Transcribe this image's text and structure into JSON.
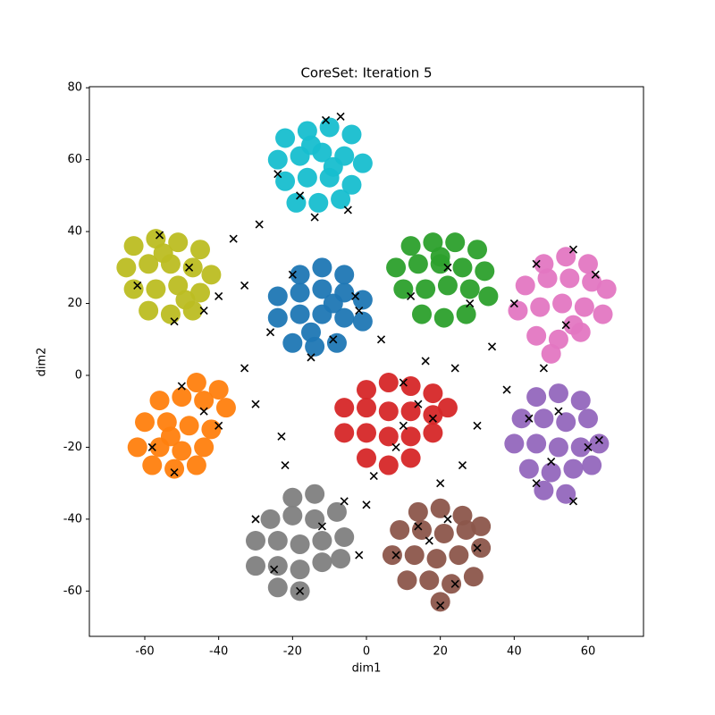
{
  "chart_data": {
    "type": "scatter",
    "title": "CoreSet: Iteration 5",
    "x_label": "dim1",
    "y_label": "dim2",
    "xlim": [
      -75,
      75
    ],
    "ylim": [
      -72.6,
      80.3
    ],
    "xticks": [
      -60,
      -40,
      -20,
      0,
      20,
      40,
      60
    ],
    "yticks": [
      -60,
      -40,
      -20,
      0,
      20,
      40,
      60,
      80
    ],
    "grid": false,
    "series": [
      {
        "color": "#17becf",
        "marker": "o",
        "x": [
          -22,
          -16,
          -10,
          -4,
          -24,
          -18,
          -12,
          -6,
          -1,
          -22,
          -16,
          -10,
          -4,
          -19,
          -13,
          -7,
          -15,
          -9
        ],
        "y": [
          66,
          68,
          69,
          67,
          60,
          61,
          62,
          61,
          59,
          54,
          55,
          55,
          53,
          48,
          48,
          49,
          64,
          58
        ]
      },
      {
        "color": "#bcbd22",
        "marker": "o",
        "x": [
          -63,
          -57,
          -51,
          -45,
          -65,
          -59,
          -53,
          -47,
          -42,
          -63,
          -57,
          -51,
          -45,
          -59,
          -53,
          -47,
          -55,
          -49
        ],
        "y": [
          36,
          38,
          37,
          35,
          30,
          31,
          31,
          30,
          28,
          24,
          24,
          25,
          23,
          18,
          17,
          18,
          34,
          21
        ]
      },
      {
        "color": "#1f77b4",
        "marker": "o",
        "x": [
          -18,
          -12,
          -6,
          -24,
          -18,
          -12,
          -6,
          -1,
          -24,
          -18,
          -12,
          -6,
          -1,
          -20,
          -14,
          -8,
          -15,
          -9
        ],
        "y": [
          28,
          30,
          28,
          22,
          23,
          24,
          23,
          21,
          16,
          17,
          17,
          16,
          15,
          9,
          8,
          9,
          12,
          20
        ]
      },
      {
        "color": "#2ca02c",
        "marker": "o",
        "x": [
          12,
          18,
          24,
          30,
          8,
          14,
          20,
          26,
          32,
          10,
          16,
          22,
          28,
          33,
          15,
          21,
          27,
          20
        ],
        "y": [
          36,
          37,
          37,
          35,
          30,
          31,
          31,
          30,
          29,
          24,
          24,
          25,
          24,
          22,
          17,
          16,
          17,
          33
        ]
      },
      {
        "color": "#e377c2",
        "marker": "o",
        "x": [
          48,
          54,
          60,
          43,
          49,
          55,
          61,
          65,
          41,
          47,
          53,
          59,
          64,
          46,
          52,
          58,
          50,
          56
        ],
        "y": [
          31,
          33,
          31,
          25,
          27,
          27,
          26,
          24,
          18,
          19,
          20,
          19,
          17,
          11,
          10,
          12,
          6,
          14
        ]
      },
      {
        "color": "#ff7f0e",
        "marker": "o",
        "x": [
          -46,
          -40,
          -56,
          -50,
          -44,
          -38,
          -60,
          -54,
          -48,
          -42,
          -62,
          -56,
          -50,
          -44,
          -58,
          -52,
          -46,
          -53
        ],
        "y": [
          -2,
          -4,
          -7,
          -6,
          -7,
          -9,
          -13,
          -13,
          -14,
          -15,
          -20,
          -20,
          -21,
          -20,
          -25,
          -26,
          -25,
          -17
        ]
      },
      {
        "color": "#d62728",
        "marker": "o",
        "x": [
          0,
          6,
          12,
          18,
          -6,
          0,
          6,
          12,
          18,
          22,
          -6,
          0,
          6,
          12,
          18,
          0,
          6,
          12
        ],
        "y": [
          -4,
          -2,
          -3,
          -5,
          -9,
          -9,
          -10,
          -10,
          -11,
          -9,
          -16,
          -16,
          -17,
          -17,
          -16,
          -23,
          -25,
          -23
        ]
      },
      {
        "color": "#9467bd",
        "marker": "o",
        "x": [
          46,
          52,
          58,
          42,
          48,
          54,
          60,
          40,
          46,
          52,
          58,
          63,
          44,
          50,
          56,
          61,
          48,
          54
        ],
        "y": [
          -6,
          -5,
          -7,
          -12,
          -12,
          -13,
          -12,
          -19,
          -19,
          -20,
          -20,
          -19,
          -26,
          -27,
          -26,
          -25,
          -32,
          -33
        ]
      },
      {
        "color": "#7f7f7f",
        "marker": "o",
        "x": [
          -20,
          -14,
          -26,
          -20,
          -14,
          -8,
          -30,
          -24,
          -18,
          -12,
          -6,
          -30,
          -24,
          -18,
          -12,
          -7,
          -24,
          -18
        ],
        "y": [
          -34,
          -33,
          -40,
          -39,
          -40,
          -38,
          -46,
          -46,
          -47,
          -46,
          -45,
          -53,
          -53,
          -54,
          -52,
          -51,
          -59,
          -60
        ]
      },
      {
        "color": "#8c564b",
        "marker": "o",
        "x": [
          14,
          20,
          26,
          9,
          15,
          21,
          27,
          31,
          7,
          13,
          19,
          25,
          31,
          11,
          17,
          23,
          29,
          20
        ],
        "y": [
          -38,
          -37,
          -39,
          -43,
          -43,
          -44,
          -43,
          -42,
          -50,
          -50,
          -51,
          -50,
          -48,
          -57,
          -57,
          -58,
          -56,
          -63
        ]
      },
      {
        "color": "#000000",
        "marker": "x",
        "x": [
          -11,
          -7,
          -24,
          -29,
          -18,
          -5,
          -14,
          -56,
          -62,
          -48,
          -52,
          -40,
          -36,
          -44,
          -33,
          -20,
          -9,
          -3,
          -15,
          -26,
          -50,
          -58,
          -44,
          -52,
          -40,
          -33,
          -30,
          -23,
          -30,
          -25,
          -18,
          -12,
          -6,
          -22,
          2,
          8,
          14,
          20,
          26,
          30,
          18,
          10,
          4,
          -2,
          12,
          22,
          28,
          34,
          38,
          44,
          50,
          56,
          60,
          63,
          52,
          46,
          40,
          46,
          56,
          62,
          48,
          54,
          20,
          24,
          14,
          8,
          22,
          30,
          17,
          0,
          -2,
          10,
          16,
          24
        ],
        "y": [
          71,
          72,
          56,
          42,
          50,
          46,
          44,
          39,
          25,
          30,
          15,
          22,
          38,
          18,
          25,
          28,
          10,
          22,
          5,
          12,
          -3,
          -20,
          -10,
          -27,
          -14,
          2,
          -8,
          -17,
          -40,
          -54,
          -60,
          -42,
          -35,
          -25,
          -28,
          -20,
          -8,
          -30,
          -25,
          -14,
          -12,
          -2,
          10,
          18,
          22,
          30,
          20,
          8,
          -4,
          -12,
          -24,
          -35,
          -20,
          -18,
          -10,
          -30,
          20,
          31,
          35,
          28,
          2,
          14,
          -64,
          -58,
          -42,
          -50,
          -40,
          -48,
          -46,
          -36,
          -50,
          -14,
          4,
          2
        ]
      }
    ]
  }
}
